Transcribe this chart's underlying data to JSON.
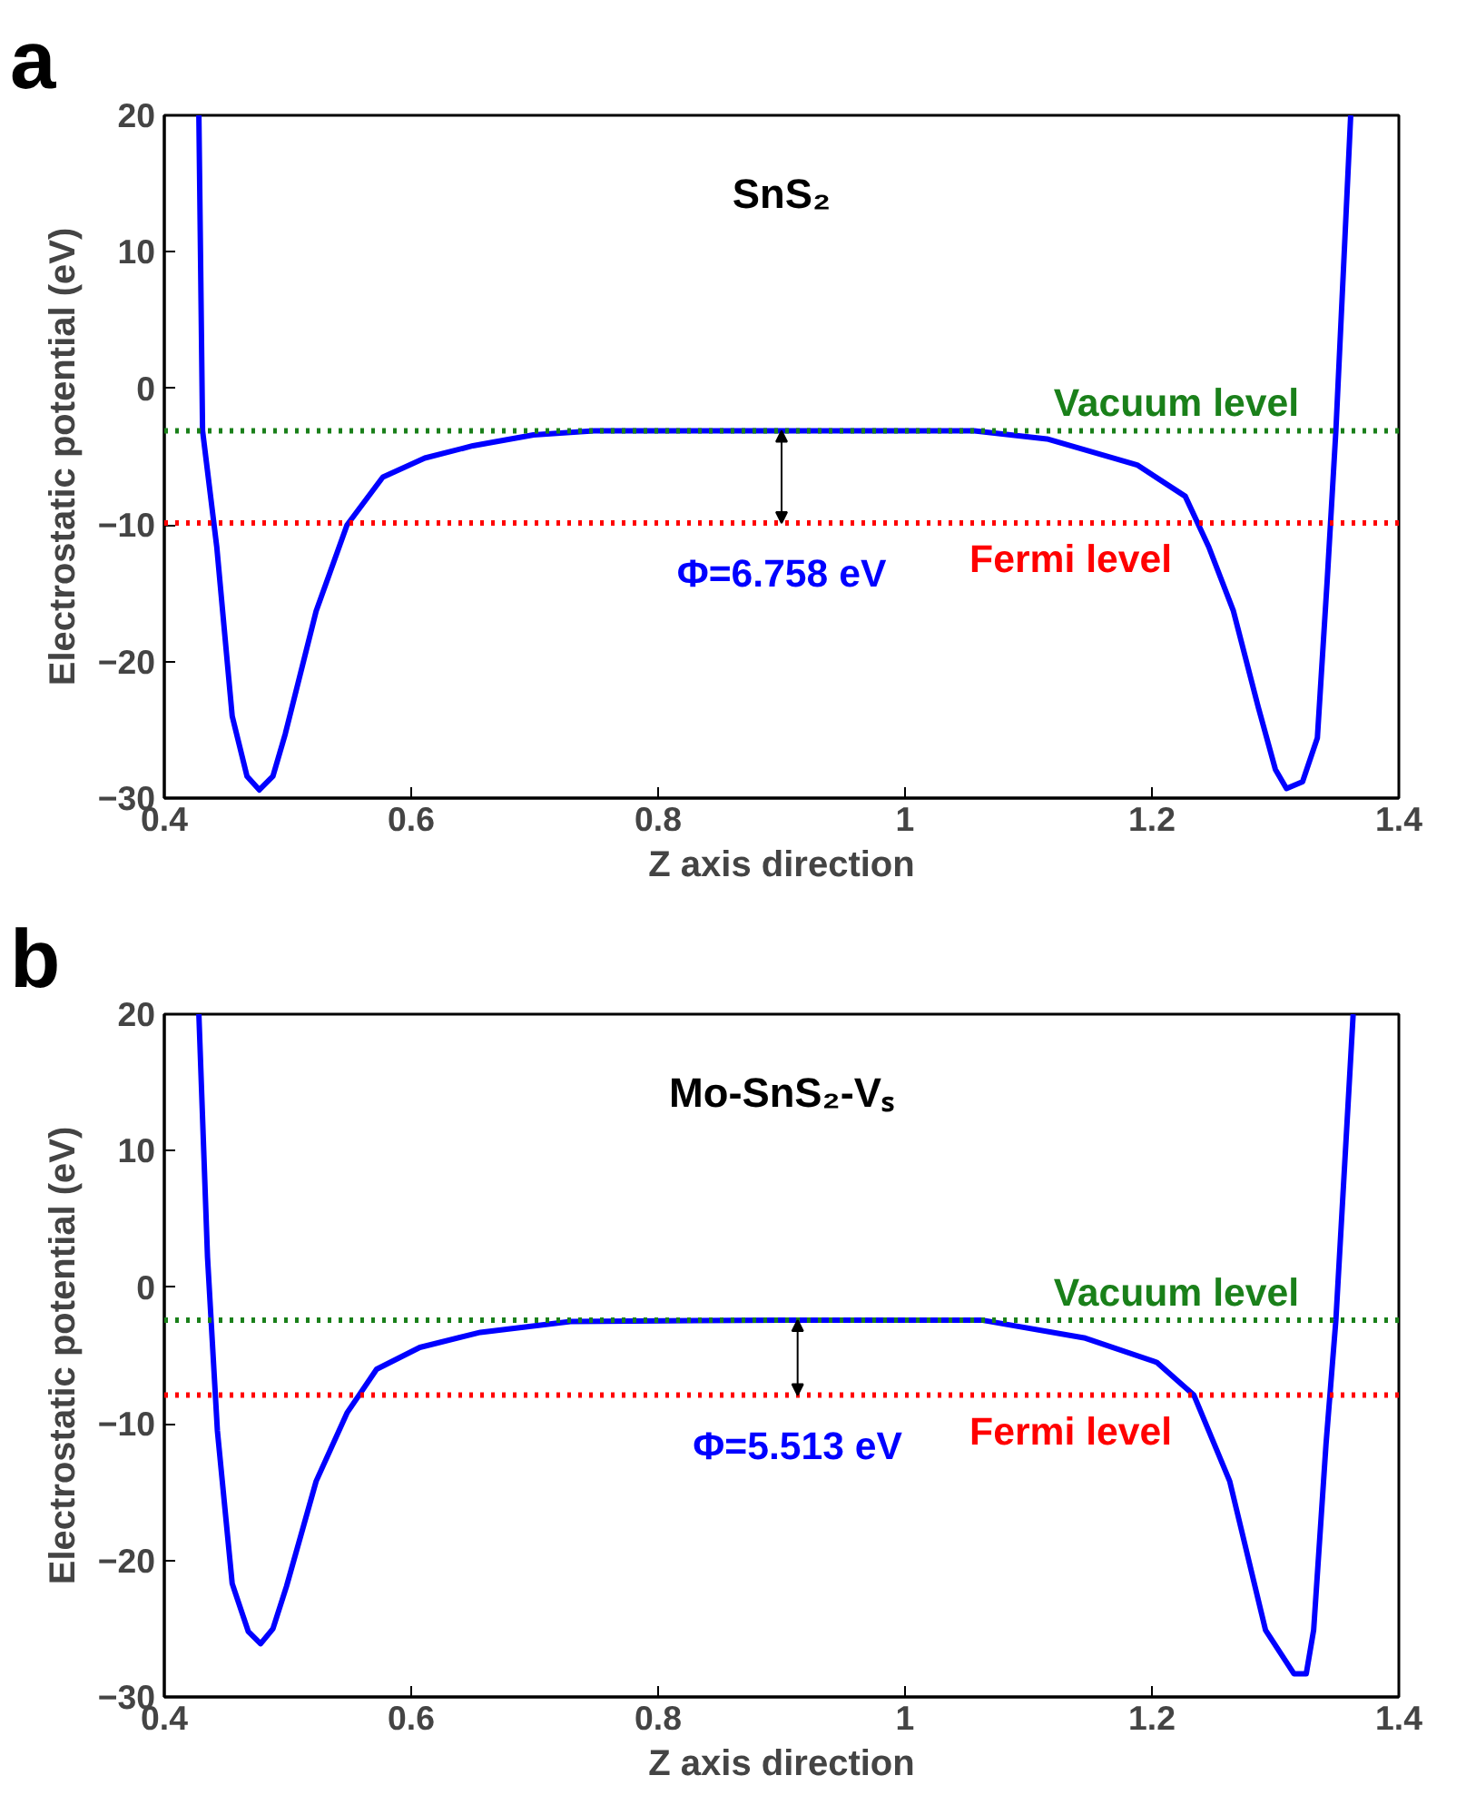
{
  "chart_data": [
    {
      "type": "line",
      "title": "SnS₂",
      "xlabel": "Z axis direction",
      "ylabel": "Electrostatic potential (eV)",
      "x": [
        0.428,
        0.431,
        0.4425,
        0.455,
        0.467,
        0.477,
        0.488,
        0.498,
        0.523,
        0.548,
        0.577,
        0.611,
        0.65,
        0.699,
        0.748,
        0.9,
        1.056,
        1.115,
        1.188,
        1.227,
        1.246,
        1.266,
        1.286,
        1.3,
        1.309,
        1.322,
        1.334,
        1.342,
        1.349,
        1.361
      ],
      "series": [
        {
          "color": "#0000ff",
          "values": [
            20,
            -3.1,
            -11.6,
            -24,
            -28.4,
            -29.4,
            -28.4,
            -25.3,
            -16.3,
            -10.0,
            -6.5,
            -5.1,
            -4.2,
            -3.4,
            -3.1,
            -3.1,
            -3.1,
            -3.7,
            -5.6,
            -7.9,
            -11.6,
            -16.3,
            -23.3,
            -27.9,
            -29.3,
            -28.8,
            -25.6,
            -14.0,
            -3.1,
            20
          ]
        }
      ],
      "xlim": [
        0.4,
        1.4
      ],
      "ylim": [
        -30,
        20
      ],
      "xticks": [
        0.4,
        0.6,
        0.8,
        1.0,
        1.2,
        1.4
      ],
      "yticks": [
        20,
        10,
        0,
        -10,
        -20,
        -30
      ],
      "ref_lines": [
        {
          "axis": "y",
          "value": -3.1,
          "label": "Vacuum level",
          "color": "#1a801a",
          "line_style": "dotted"
        },
        {
          "axis": "y",
          "value": -9.86,
          "label": "Fermi level",
          "color": "#ff0000",
          "line_style": "dotted"
        }
      ],
      "annotations": [
        "a",
        {
          "text": "Φ=6.758 eV",
          "x": 0.9,
          "y": -3.1
        }
      ],
      "grid": false
    },
    {
      "type": "line",
      "title": "Mo-SnS₂-Vₛ",
      "xlabel": "Z axis direction",
      "ylabel": "Electrostatic potential (eV)",
      "x": [
        0.428,
        0.435,
        0.443,
        0.455,
        0.468,
        0.478,
        0.488,
        0.499,
        0.523,
        0.548,
        0.572,
        0.607,
        0.656,
        0.729,
        0.9,
        1.062,
        1.145,
        1.204,
        1.234,
        1.263,
        1.292,
        1.315,
        1.325,
        1.331,
        1.341,
        1.349,
        1.363
      ],
      "series": [
        {
          "color": "#0000ff",
          "values": [
            20,
            2.2,
            -10.5,
            -21.7,
            -25.2,
            -26.1,
            -25.0,
            -21.9,
            -14.2,
            -9.2,
            -6.0,
            -4.4,
            -3.3,
            -2.5,
            -2.4,
            -2.4,
            -3.7,
            -5.5,
            -7.9,
            -14.2,
            -25.1,
            -28.3,
            -28.3,
            -25.1,
            -11.5,
            -2.4,
            20
          ]
        }
      ],
      "xlim": [
        0.4,
        1.4
      ],
      "ylim": [
        -30,
        20
      ],
      "xticks": [
        0.4,
        0.6,
        0.8,
        1.0,
        1.2,
        1.4
      ],
      "yticks": [
        20,
        10,
        0,
        -10,
        -20,
        -30
      ],
      "ref_lines": [
        {
          "axis": "y",
          "value": -2.4,
          "label": "Vacuum level",
          "color": "#1a801a",
          "line_style": "dotted"
        },
        {
          "axis": "y",
          "value": -7.9,
          "label": "Fermi level",
          "color": "#ff0000",
          "line_style": "dotted"
        }
      ],
      "annotations": [
        "b",
        {
          "text": "Φ=5.513 eV",
          "x": 0.913,
          "y": -2.4
        }
      ],
      "grid": false
    }
  ]
}
